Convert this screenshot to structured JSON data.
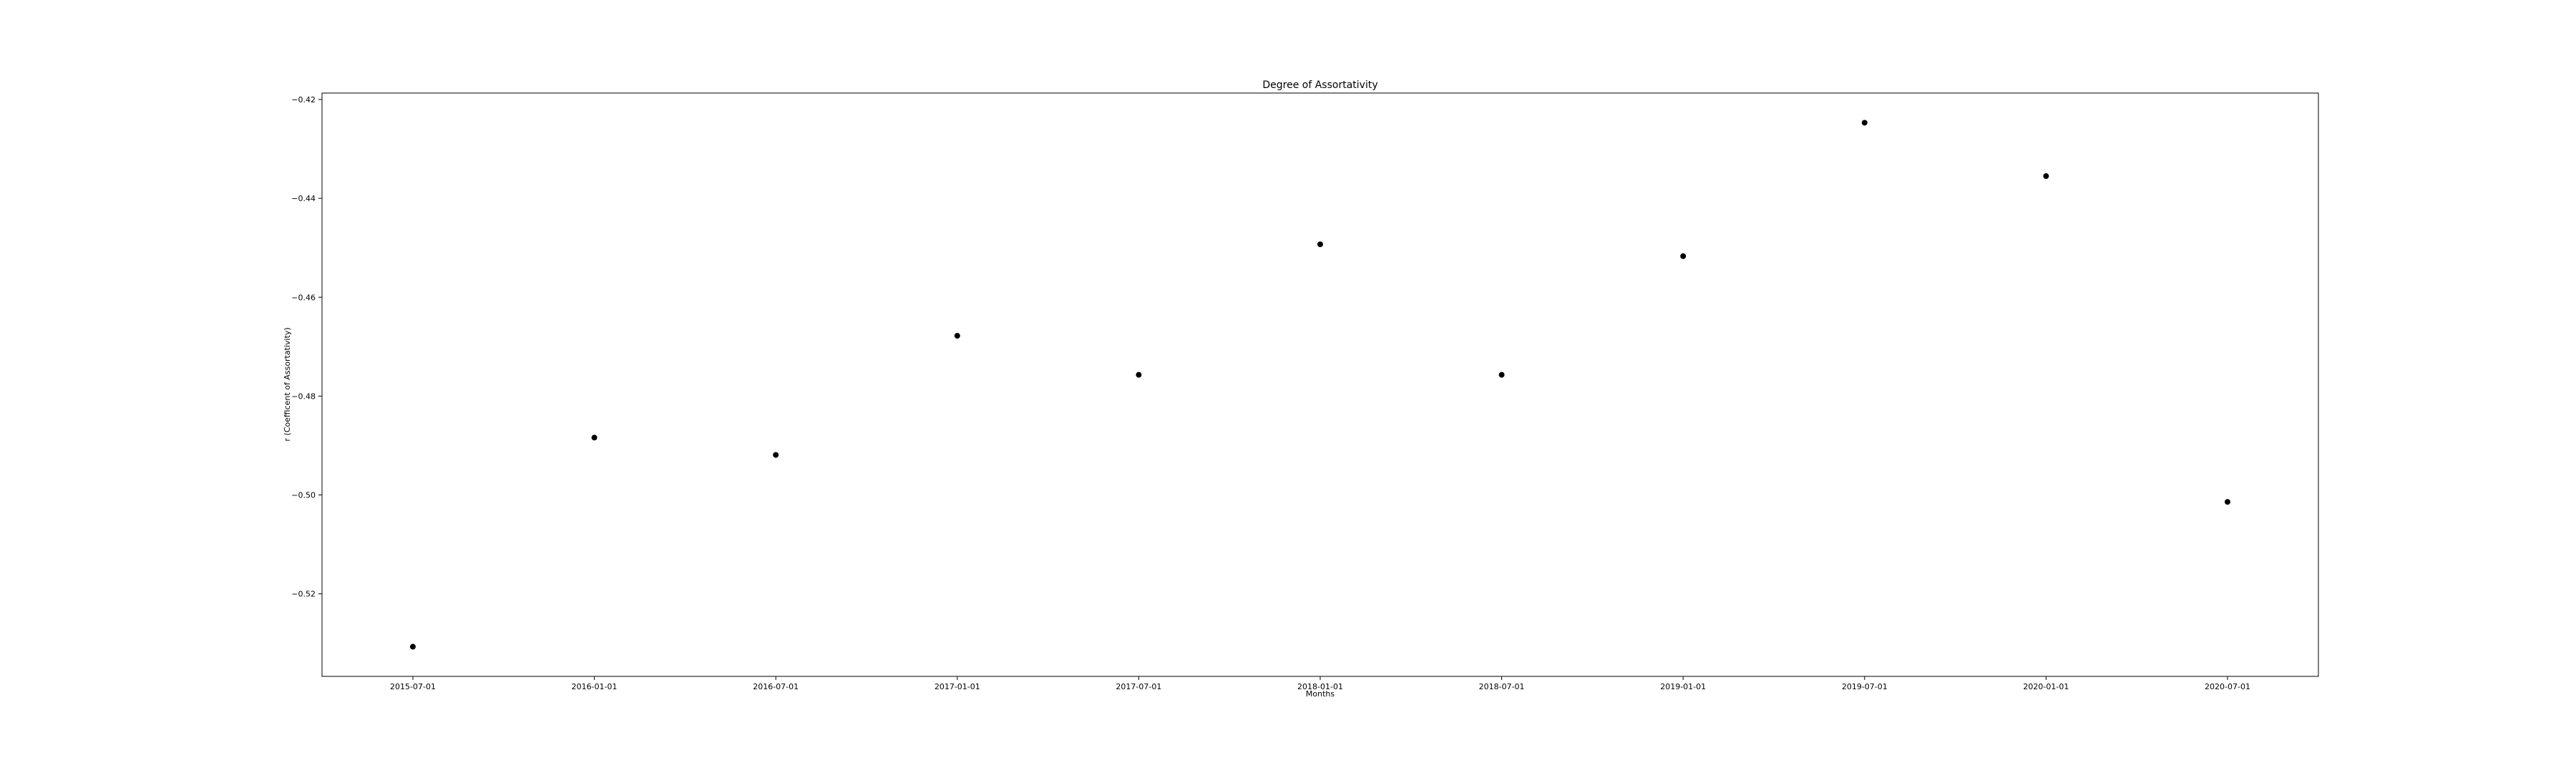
{
  "chart_data": {
    "type": "scatter",
    "title": "Degree of Assortativity",
    "xlabel": "Months",
    "ylabel": "r (Coefficent of Assortativity)",
    "x": [
      "2015-07-01",
      "2016-01-01",
      "2016-07-01",
      "2017-01-01",
      "2017-07-01",
      "2018-01-01",
      "2018-07-01",
      "2019-01-01",
      "2019-07-01",
      "2020-01-01",
      "2020-07-01"
    ],
    "y": [
      -0.5307,
      -0.4884,
      -0.4919,
      -0.4678,
      -0.4757,
      -0.4493,
      -0.4757,
      -0.4517,
      -0.4247,
      -0.4355,
      -0.5014
    ],
    "x_ticks": [
      "2015-07-01",
      "2016-01-01",
      "2016-07-01",
      "2017-01-01",
      "2017-07-01",
      "2018-01-01",
      "2018-07-01",
      "2019-01-01",
      "2019-07-01",
      "2020-01-01",
      "2020-07-01"
    ],
    "y_ticks": [
      "−0.52",
      "−0.50",
      "−0.48",
      "−0.46",
      "−0.44",
      "−0.42"
    ],
    "y_tick_values": [
      -0.52,
      -0.5,
      -0.48,
      -0.46,
      -0.44,
      -0.42
    ],
    "ylim": [
      -0.5367,
      -0.4187
    ],
    "grid": false,
    "marker_color": "#000000"
  }
}
